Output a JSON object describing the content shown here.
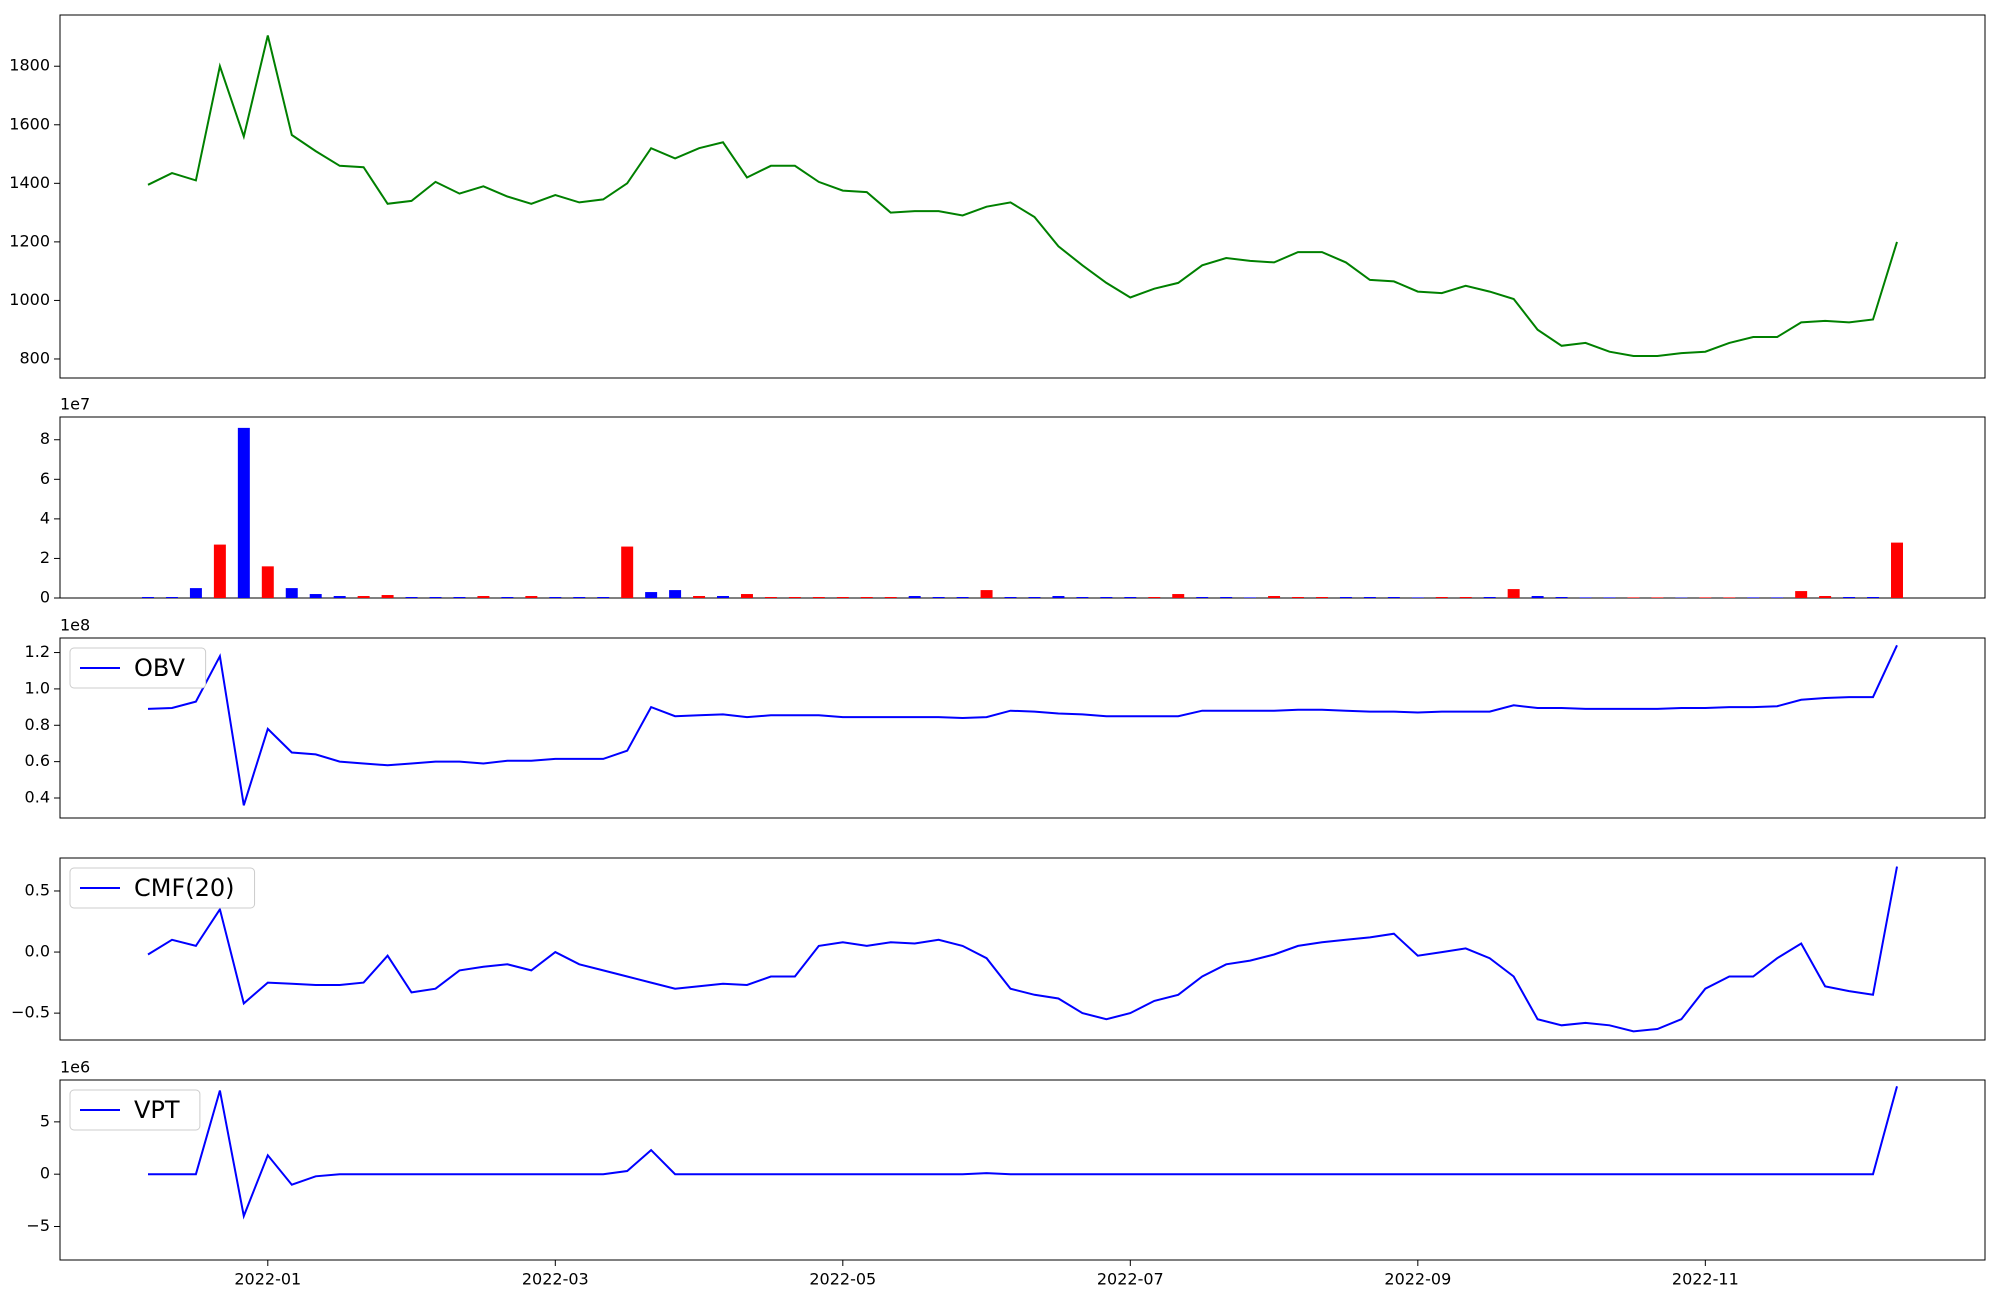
{
  "chart_data": [
    {
      "type": "line",
      "color": "green",
      "ylim": [
        735,
        1975
      ],
      "yticks": [
        800,
        1000,
        1200,
        1400,
        1600,
        1800
      ],
      "values": [
        1395,
        1435,
        1410,
        1800,
        1560,
        1905,
        1565,
        1510,
        1460,
        1455,
        1330,
        1340,
        1405,
        1365,
        1390,
        1355,
        1330,
        1360,
        1335,
        1345,
        1400,
        1520,
        1485,
        1520,
        1540,
        1420,
        1460,
        1460,
        1405,
        1375,
        1370,
        1300,
        1305,
        1305,
        1290,
        1320,
        1335,
        1285,
        1185,
        1120,
        1060,
        1010,
        1040,
        1060,
        1120,
        1145,
        1135,
        1130,
        1165,
        1165,
        1130,
        1070,
        1065,
        1030,
        1025,
        1050,
        1030,
        1005,
        900,
        845,
        855,
        825,
        810,
        810,
        820,
        825,
        855,
        875,
        875,
        925,
        930,
        925,
        935,
        1200
      ]
    },
    {
      "type": "bar",
      "offset": "1e7",
      "ylim": [
        0,
        9.15
      ],
      "yticks": [
        0,
        2,
        4,
        6,
        8
      ],
      "values": [
        0.05,
        0.05,
        0.5,
        2.7,
        8.6,
        1.6,
        0.5,
        0.2,
        0.1,
        0.1,
        0.15,
        0.05,
        0.05,
        0.05,
        0.1,
        0.05,
        0.1,
        0.05,
        0.05,
        0.05,
        2.6,
        0.3,
        0.4,
        0.1,
        0.1,
        0.2,
        0.05,
        0.05,
        0.05,
        0.05,
        0.05,
        0.05,
        0.1,
        0.05,
        0.05,
        0.4,
        0.05,
        0.05,
        0.1,
        0.05,
        0.05,
        0.05,
        0.05,
        0.2,
        0.05,
        0.05,
        0.03,
        0.1,
        0.05,
        0.05,
        0.05,
        0.05,
        0.05,
        0.03,
        0.05,
        0.05,
        0.05,
        0.45,
        0.1,
        0.05,
        0.03,
        0.03,
        0.03,
        0.03,
        0.02,
        0.03,
        0.03,
        0.03,
        0.03,
        0.35,
        0.1,
        0.05,
        0.05,
        2.8
      ],
      "colors": [
        "blue",
        "blue",
        "blue",
        "red",
        "blue",
        "red",
        "blue",
        "blue",
        "blue",
        "red",
        "red",
        "blue",
        "blue",
        "blue",
        "red",
        "blue",
        "red",
        "blue",
        "blue",
        "blue",
        "red",
        "blue",
        "blue",
        "red",
        "blue",
        "red",
        "red",
        "red",
        "red",
        "red",
        "red",
        "red",
        "blue",
        "blue",
        "blue",
        "red",
        "blue",
        "blue",
        "blue",
        "blue",
        "blue",
        "blue",
        "red",
        "red",
        "blue",
        "blue",
        "blue",
        "red",
        "red",
        "red",
        "blue",
        "blue",
        "blue",
        "blue",
        "red",
        "red",
        "blue",
        "red",
        "blue",
        "blue",
        "blue",
        "blue",
        "red",
        "red",
        "blue",
        "red",
        "red",
        "blue",
        "blue",
        "red",
        "red",
        "blue",
        "blue",
        "red"
      ]
    },
    {
      "type": "line",
      "offset": "1e8",
      "legend": "upper left",
      "ylim": [
        0.29,
        1.28
      ],
      "yticks": [
        0.4,
        0.6,
        0.8,
        {
          "value": 1,
          "label": "1.0"
        },
        1.2
      ],
      "series": [
        {
          "name": "OBV",
          "color": "blue",
          "values": [
            0.89,
            0.895,
            0.93,
            1.18,
            0.36,
            0.78,
            0.65,
            0.64,
            0.6,
            0.59,
            0.58,
            0.59,
            0.6,
            0.6,
            0.59,
            0.605,
            0.605,
            0.615,
            0.615,
            0.615,
            0.66,
            0.9,
            0.85,
            0.855,
            0.86,
            0.845,
            0.855,
            0.855,
            0.855,
            0.845,
            0.845,
            0.845,
            0.845,
            0.845,
            0.84,
            0.845,
            0.88,
            0.875,
            0.865,
            0.86,
            0.85,
            0.85,
            0.85,
            0.85,
            0.88,
            0.88,
            0.88,
            0.88,
            0.885,
            0.885,
            0.88,
            0.875,
            0.875,
            0.87,
            0.875,
            0.875,
            0.875,
            0.91,
            0.895,
            0.895,
            0.89,
            0.89,
            0.89,
            0.89,
            0.895,
            0.895,
            0.9,
            0.9,
            0.905,
            0.94,
            0.95,
            0.955,
            0.955,
            1.24
          ]
        }
      ]
    },
    {
      "type": "line",
      "legend": "upper left",
      "ylim": [
        -0.72,
        0.77
      ],
      "yticks": [
        {
          "value": -0.5,
          "label": "−0.5"
        },
        {
          "value": 0,
          "label": "0.0"
        },
        0.5
      ],
      "series": [
        {
          "name": "CMF(20)",
          "color": "blue",
          "values": [
            -0.02,
            0.1,
            0.05,
            0.35,
            -0.42,
            -0.25,
            -0.26,
            -0.27,
            -0.27,
            -0.25,
            -0.03,
            -0.33,
            -0.3,
            -0.15,
            -0.12,
            -0.1,
            -0.15,
            0,
            -0.1,
            -0.15,
            -0.2,
            -0.25,
            -0.3,
            -0.28,
            -0.26,
            -0.27,
            -0.2,
            -0.2,
            0.05,
            0.08,
            0.05,
            0.08,
            0.07,
            0.1,
            0.05,
            -0.05,
            -0.3,
            -0.35,
            -0.38,
            -0.5,
            -0.55,
            -0.5,
            -0.4,
            -0.35,
            -0.2,
            -0.1,
            -0.07,
            -0.02,
            0.05,
            0.08,
            0.1,
            0.12,
            0.15,
            -0.03,
            0,
            0.03,
            -0.05,
            -0.2,
            -0.55,
            -0.6,
            -0.58,
            -0.6,
            -0.65,
            -0.63,
            -0.55,
            -0.3,
            -0.2,
            -0.2,
            -0.05,
            0.07,
            -0.28,
            -0.32,
            -0.35,
            0.7
          ]
        }
      ]
    },
    {
      "type": "line",
      "offset": "1e6",
      "legend": "upper left",
      "ylim": [
        -8.2,
        9.0
      ],
      "yticks": [
        {
          "value": -5,
          "label": "−5"
        },
        0,
        5
      ],
      "categories": [
        null,
        null,
        null,
        null,
        null,
        "2022-01",
        null,
        null,
        null,
        null,
        null,
        null,
        null,
        null,
        null,
        null,
        null,
        "2022-03",
        null,
        null,
        null,
        null,
        null,
        null,
        null,
        null,
        null,
        null,
        null,
        "2022-05",
        null,
        null,
        null,
        null,
        null,
        null,
        null,
        null,
        null,
        null,
        null,
        "2022-07",
        null,
        null,
        null,
        null,
        null,
        null,
        null,
        null,
        null,
        null,
        null,
        "2022-09",
        null,
        null,
        null,
        null,
        null,
        null,
        null,
        null,
        null,
        null,
        null,
        "2022-11",
        null,
        null,
        null,
        null,
        null,
        null,
        null,
        null
      ],
      "series": [
        {
          "name": "VPT",
          "color": "blue",
          "values": [
            0,
            0,
            0,
            8,
            -4,
            1.8,
            -1,
            -0.2,
            0,
            0,
            0,
            0,
            0,
            0,
            0,
            0,
            0,
            0,
            0,
            0,
            0.3,
            2.3,
            0,
            0,
            0,
            0,
            0,
            0,
            0,
            0,
            0,
            0,
            0,
            0,
            0,
            0.1,
            0,
            0,
            0,
            0,
            0,
            0,
            0,
            0,
            0,
            0,
            0,
            0,
            0,
            0,
            0,
            0,
            0,
            0,
            0,
            0,
            0,
            0,
            0,
            0,
            0,
            0,
            0,
            0,
            0,
            0,
            0,
            0,
            0,
            0,
            0,
            0,
            0,
            8.4
          ]
        }
      ]
    }
  ]
}
